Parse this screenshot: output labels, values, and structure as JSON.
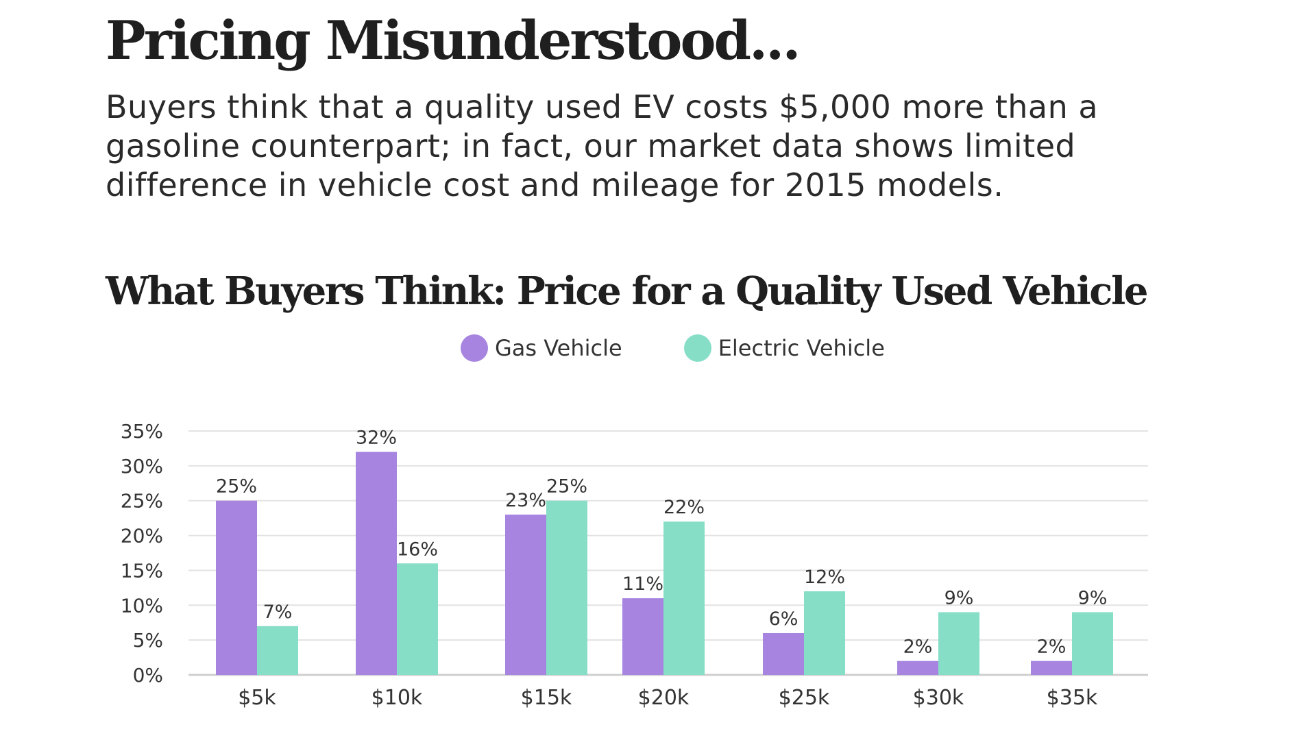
{
  "header": {
    "title": "Pricing Misunderstood...",
    "intro": "Buyers think that a quality used EV costs $5,000 more than a gasoline counterpart; in fact, our market data shows limited difference in vehicle cost and mileage for 2015 models."
  },
  "chart_data": {
    "type": "bar",
    "title": "What Buyers Think: Price for a Quality Used Vehicle",
    "xlabel": "",
    "ylabel": "",
    "categories": [
      "$5k",
      "$10k",
      "$15k",
      "$20k",
      "$25k",
      "$30k",
      "$35k"
    ],
    "series": [
      {
        "name": "Gas Vehicle",
        "color": "#a684e0",
        "values": [
          25,
          32,
          23,
          11,
          6,
          2,
          2
        ]
      },
      {
        "name": "Electric Vehicle",
        "color": "#86dec7",
        "values": [
          7,
          16,
          25,
          22,
          12,
          9,
          9
        ]
      }
    ],
    "data_labels": [
      [
        "25%",
        "32%",
        "23%",
        "11%",
        "6%",
        "2%",
        "2%"
      ],
      [
        "7%",
        "16%",
        "25%",
        "22%",
        "12%",
        "9%",
        "9%"
      ]
    ],
    "ylim": [
      0,
      35
    ],
    "yticks": [
      0,
      5,
      10,
      15,
      20,
      25,
      30,
      35
    ],
    "ytick_labels": [
      "0%",
      "5%",
      "10%",
      "15%",
      "20%",
      "25%",
      "30%",
      "35%"
    ],
    "grid": true,
    "legend_position": "top-center"
  }
}
